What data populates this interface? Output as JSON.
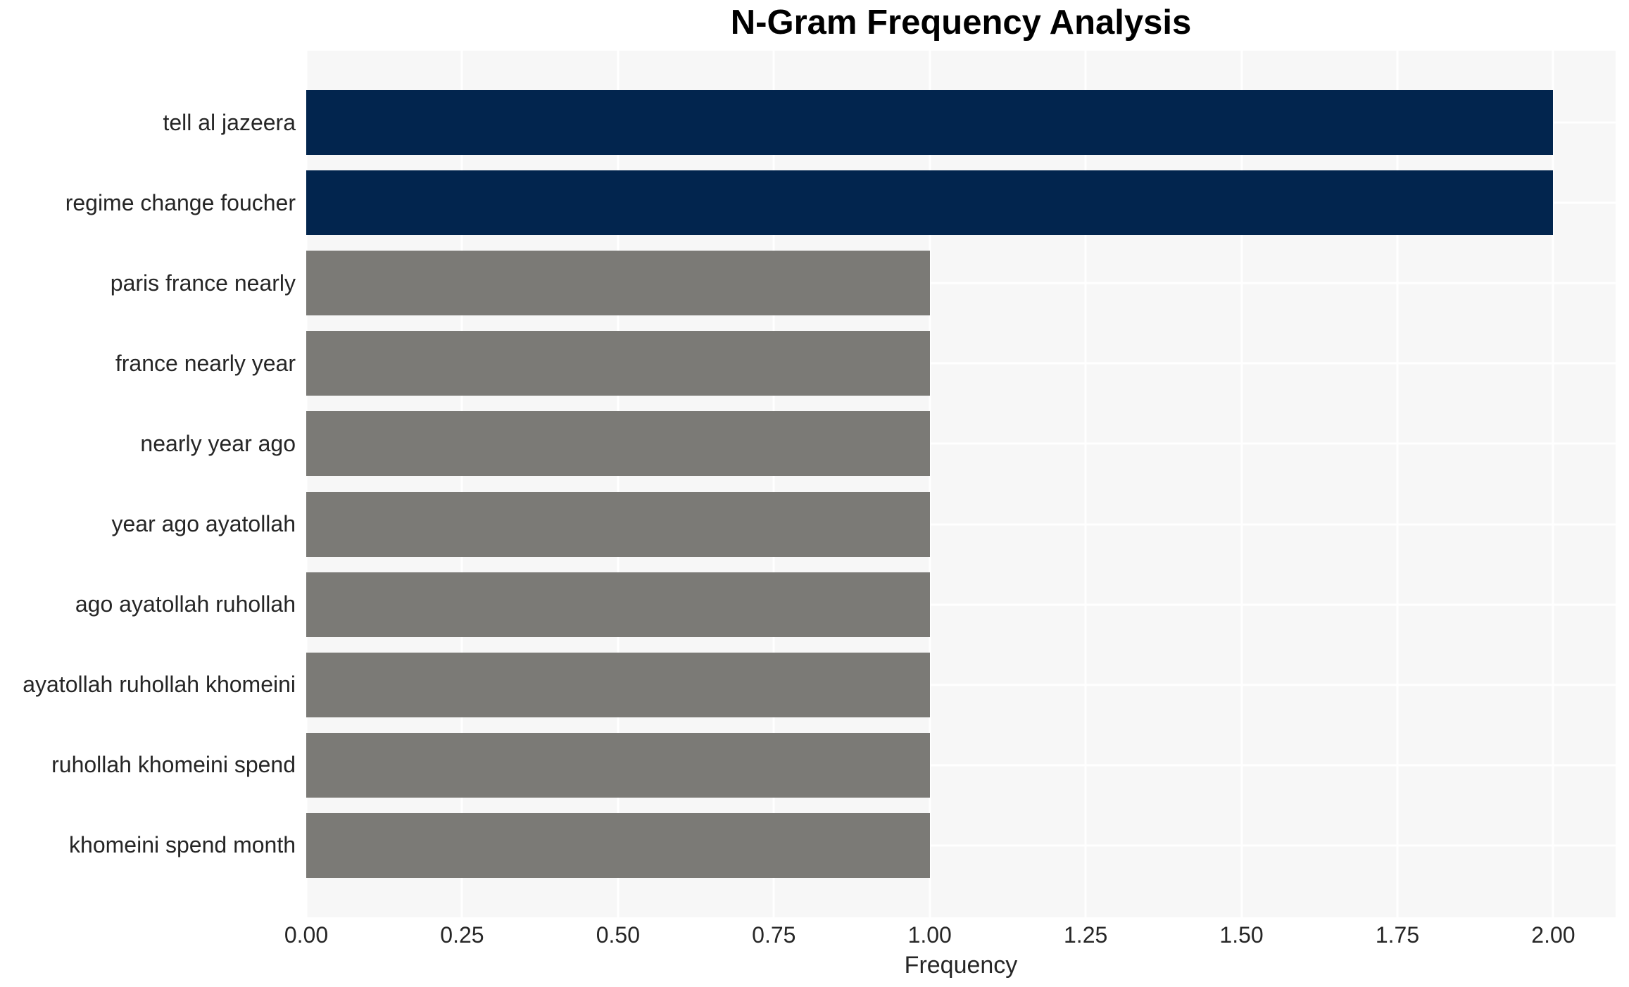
{
  "chart_data": {
    "type": "bar",
    "orientation": "horizontal",
    "title": "N-Gram Frequency Analysis",
    "xlabel": "Frequency",
    "ylabel": "",
    "categories": [
      "tell al jazeera",
      "regime change foucher",
      "paris france nearly",
      "france nearly year",
      "nearly year ago",
      "year ago ayatollah",
      "ago ayatollah ruhollah",
      "ayatollah ruhollah khomeini",
      "ruhollah khomeini spend",
      "khomeini spend month"
    ],
    "values": [
      2,
      2,
      1,
      1,
      1,
      1,
      1,
      1,
      1,
      1
    ],
    "bar_colors": [
      "#02254e",
      "#02254e",
      "#7b7a76",
      "#7b7a76",
      "#7b7a76",
      "#7b7a76",
      "#7b7a76",
      "#7b7a76",
      "#7b7a76",
      "#7b7a76"
    ],
    "xlim": [
      0,
      2.1
    ],
    "xticks": [
      0,
      0.25,
      0.5,
      0.75,
      1.0,
      1.25,
      1.5,
      1.75,
      2.0
    ],
    "xtick_labels": [
      "0.00",
      "0.25",
      "0.50",
      "0.75",
      "1.00",
      "1.25",
      "1.50",
      "1.75",
      "2.00"
    ],
    "grid": "on",
    "legend": "none",
    "colors": {
      "highlight_bar": "#02254e",
      "default_bar": "#7b7a76",
      "plot_background": "#f7f7f7",
      "gridline": "#ffffff",
      "tick_text": "#262626",
      "title_text": "#000000"
    }
  }
}
